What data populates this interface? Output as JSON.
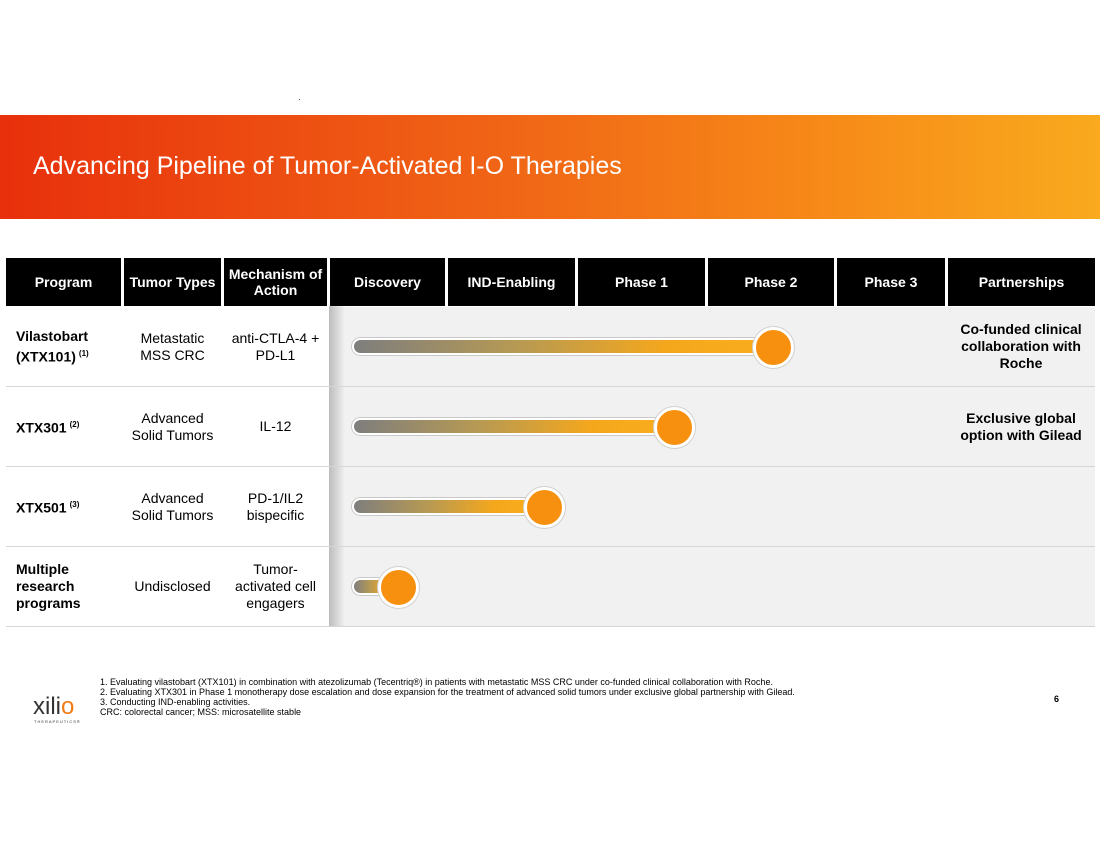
{
  "slide": {
    "title": "Advancing Pipeline of Tumor-Activated I-O Therapies",
    "page_number": "6"
  },
  "table": {
    "headers": {
      "program": "Program",
      "tumor_types": "Tumor Types",
      "mechanism": "Mechanism of Action",
      "discovery": "Discovery",
      "ind_enabling": "IND-Enabling",
      "phase1": "Phase 1",
      "phase2": "Phase 2",
      "phase3": "Phase 3",
      "partnerships": "Partnerships"
    },
    "rows": [
      {
        "program": "Vilastobart (XTX101)",
        "footnote": "(1)",
        "tumor_types": "Metastatic MSS CRC",
        "mechanism": "anti-CTLA-4 + PD-L1",
        "stage_progress": 0.55,
        "partnership": "Co-funded clinical collaboration with Roche"
      },
      {
        "program": "XTX301",
        "footnote": "(2)",
        "tumor_types": "Advanced Solid Tumors",
        "mechanism": "IL-12",
        "stage_progress": 0.42,
        "partnership": "Exclusive global option with Gilead"
      },
      {
        "program": "XTX501",
        "footnote": "(3)",
        "tumor_types": "Advanced Solid Tumors",
        "mechanism": "PD-1/IL2 bispecific",
        "stage_progress": 0.25,
        "partnership": ""
      },
      {
        "program": "Multiple research programs",
        "footnote": "",
        "tumor_types": "Undisclosed",
        "mechanism": "Tumor-activated cell engagers",
        "stage_progress": 0.06,
        "partnership": ""
      }
    ]
  },
  "logo": {
    "word_prefix": "xili",
    "word_suffix": "o",
    "subtitle": "THERAPEUTICS®"
  },
  "footnotes": [
    "1.  Evaluating vilastobart (XTX101) in combination with atezolizumab (Tecentriq®) in patients with metastatic MSS CRC under co-funded clinical collaboration with Roche.",
    "2.  Evaluating XTX301 in Phase 1 monotherapy dose escalation and dose expansion for the treatment of advanced solid tumors under exclusive global partnership with Gilead.",
    "3.  Conducting IND-enabling activities.",
    "CRC: colorectal cancer; MSS: microsatellite stable"
  ],
  "colors": {
    "banner_start": "#e8300c",
    "banner_end": "#f9aa1e",
    "knob": "#f7900f"
  }
}
